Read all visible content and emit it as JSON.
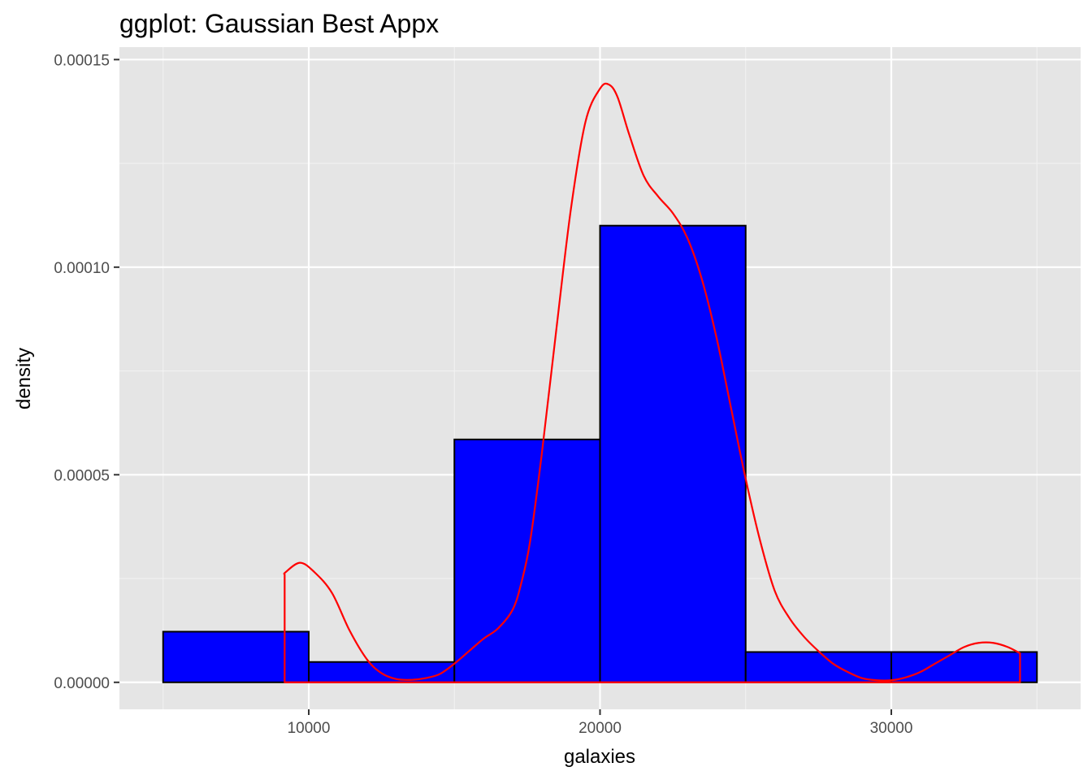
{
  "chart_data": {
    "type": "bar",
    "title": "ggplot: Gaussian Best Appx",
    "xlabel": "galaxies",
    "ylabel": "density",
    "xlim": [
      3500,
      36500
    ],
    "ylim": [
      -6.5e-06,
      0.000153
    ],
    "x_ticks": [
      10000,
      20000,
      30000
    ],
    "x_tick_labels": [
      "10000",
      "20000",
      "30000"
    ],
    "y_ticks": [
      0,
      5e-05,
      0.0001,
      0.00015
    ],
    "y_tick_labels": [
      "0.00000",
      "0.00005",
      "0.00010",
      "0.00015"
    ],
    "grid": true,
    "histogram": {
      "fill": "#0000ff",
      "outline": "#000000",
      "bins": [
        {
          "x0": 5000,
          "x1": 10000,
          "density": 1.22e-05
        },
        {
          "x0": 10000,
          "x1": 15000,
          "density": 4.9e-06
        },
        {
          "x0": 15000,
          "x1": 20000,
          "density": 5.85e-05
        },
        {
          "x0": 20000,
          "x1": 25000,
          "density": 0.00011
        },
        {
          "x0": 25000,
          "x1": 30000,
          "density": 7.3e-06
        },
        {
          "x0": 30000,
          "x1": 35000,
          "density": 7.3e-06
        }
      ]
    },
    "density_curve": {
      "color": "#ff0000",
      "x": [
        9172,
        9200,
        9700,
        10200,
        10800,
        11400,
        12000,
        12500,
        13000,
        13500,
        14000,
        14500,
        15000,
        15500,
        16000,
        16500,
        17000,
        17300,
        17600,
        18000,
        18500,
        19000,
        19500,
        20000,
        20300,
        20600,
        21000,
        21500,
        22000,
        22500,
        23000,
        23500,
        24000,
        24500,
        25000,
        25500,
        26000,
        26500,
        27000,
        27500,
        28000,
        28500,
        29000,
        29500,
        30000,
        30500,
        31000,
        31500,
        32000,
        32500,
        33000,
        33500,
        34000,
        34420
      ],
      "y": [
        2.6e-05,
        2.65e-05,
        2.88e-05,
        2.65e-05,
        2.15e-05,
        1.25e-05,
        5.5e-06,
        2.2e-06,
        8e-07,
        6e-07,
        1e-06,
        2e-06,
        4.5e-06,
        7.5e-06,
        1.05e-05,
        1.3e-05,
        1.75e-05,
        2.4e-05,
        3.4e-05,
        5.5e-05,
        8.5e-05,
        0.000114,
        0.000135,
        0.000143,
        0.000144,
        0.000141,
        0.000132,
        0.000122,
        0.000117,
        0.000113,
        0.000107,
        9.7e-05,
        8.3e-05,
        6.6e-05,
        4.9e-05,
        3.4e-05,
        2.2e-05,
        1.55e-05,
        1.1e-05,
        7.5e-06,
        4.5e-06,
        2.5e-06,
        1e-06,
        5e-07,
        5e-07,
        1.2e-06,
        2.5e-06,
        4.5e-06,
        6.5e-06,
        8.5e-06,
        9.5e-06,
        9.5e-06,
        8.5e-06,
        7e-06
      ]
    }
  }
}
